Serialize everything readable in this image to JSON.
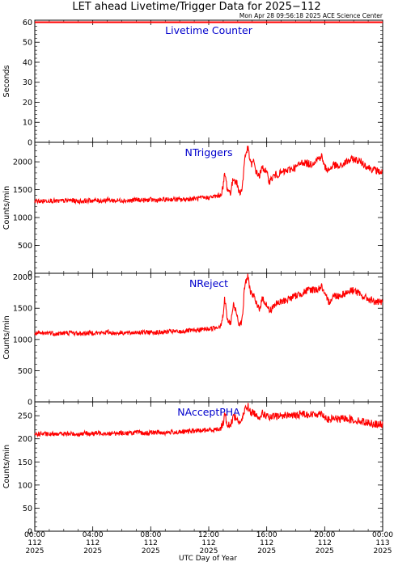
{
  "title": "LET ahead Livetime/Trigger Data for 2025−112",
  "timestamp": "Mon Apr 28 09:56:18 2025 ACE Science Center",
  "xlabel": "UTC Day of Year",
  "colors": {
    "series": "#ff0000",
    "panel_label": "#0000cc",
    "axes": "#000000",
    "background": "#ffffff"
  },
  "chart_data": [
    {
      "type": "line",
      "label": "Livetime Counter",
      "ylabel": "Seconds",
      "ylim": [
        0,
        61
      ],
      "yticks": [
        0,
        10,
        20,
        30,
        40,
        50,
        60
      ],
      "x_range_hours": [
        0,
        24
      ],
      "series": [
        {
          "x": [
            0,
            24
          ],
          "values": [
            60,
            60
          ]
        }
      ]
    },
    {
      "type": "line",
      "label": "NTriggers",
      "ylabel": "Counts/min",
      "ylim": [
        0,
        2350
      ],
      "yticks": [
        0,
        500,
        1000,
        1500,
        2000
      ],
      "x_range_hours": [
        0,
        24
      ],
      "series": [
        {
          "x": [
            0,
            0.5,
            1,
            1.5,
            2,
            2.5,
            3,
            3.5,
            4,
            4.5,
            5,
            5.5,
            6,
            6.5,
            7,
            7.5,
            8,
            8.5,
            9,
            9.5,
            10,
            10.5,
            11,
            11.5,
            12,
            12.5,
            12.8,
            13,
            13.1,
            13.3,
            13.5,
            13.7,
            13.9,
            14.1,
            14.3,
            14.5,
            14.7,
            14.9,
            15.1,
            15.3,
            15.5,
            15.7,
            15.9,
            16.2,
            16.5,
            17,
            17.5,
            18,
            18.5,
            19,
            19.5,
            19.8,
            20,
            20.3,
            20.6,
            21,
            21.5,
            22,
            22.5,
            23,
            23.5,
            24
          ],
          "values": [
            1300,
            1290,
            1310,
            1290,
            1300,
            1310,
            1290,
            1300,
            1310,
            1300,
            1320,
            1300,
            1310,
            1300,
            1320,
            1310,
            1320,
            1310,
            1320,
            1330,
            1320,
            1330,
            1340,
            1350,
            1360,
            1380,
            1400,
            1550,
            1800,
            1500,
            1450,
            1700,
            1650,
            1450,
            1500,
            2100,
            2250,
            1950,
            2000,
            1800,
            1750,
            1900,
            1850,
            1650,
            1750,
            1800,
            1850,
            1900,
            2000,
            1950,
            2050,
            2100,
            1900,
            1850,
            1950,
            1900,
            2000,
            2050,
            2000,
            1900,
            1850,
            1800
          ]
        }
      ]
    },
    {
      "type": "line",
      "label": "NReject",
      "ylabel": "Counts/min",
      "ylim": [
        0,
        2060
      ],
      "yticks": [
        0,
        500,
        1000,
        1500,
        2000
      ],
      "x_range_hours": [
        0,
        24
      ],
      "series": [
        {
          "x": [
            0,
            0.5,
            1,
            1.5,
            2,
            2.5,
            3,
            3.5,
            4,
            4.5,
            5,
            5.5,
            6,
            6.5,
            7,
            7.5,
            8,
            8.5,
            9,
            9.5,
            10,
            10.5,
            11,
            11.5,
            12,
            12.5,
            12.8,
            13,
            13.1,
            13.3,
            13.5,
            13.7,
            13.9,
            14.1,
            14.3,
            14.5,
            14.7,
            14.9,
            15.1,
            15.3,
            15.5,
            15.7,
            15.9,
            16.2,
            16.5,
            17,
            17.5,
            18,
            18.5,
            19,
            19.5,
            19.8,
            20,
            20.3,
            20.6,
            21,
            21.5,
            22,
            22.5,
            23,
            23.5,
            24
          ],
          "values": [
            1100,
            1090,
            1110,
            1090,
            1100,
            1110,
            1090,
            1100,
            1110,
            1100,
            1120,
            1100,
            1110,
            1100,
            1120,
            1110,
            1120,
            1110,
            1120,
            1130,
            1120,
            1140,
            1140,
            1160,
            1170,
            1190,
            1220,
            1400,
            1650,
            1300,
            1250,
            1550,
            1450,
            1250,
            1300,
            1900,
            2000,
            1750,
            1700,
            1550,
            1500,
            1650,
            1600,
            1450,
            1550,
            1600,
            1650,
            1700,
            1750,
            1800,
            1800,
            1850,
            1700,
            1600,
            1700,
            1700,
            1750,
            1800,
            1700,
            1650,
            1600,
            1580
          ]
        }
      ]
    },
    {
      "type": "line",
      "label": "NAcceptPHA",
      "ylabel": "Counts/min",
      "ylim": [
        0,
        280
      ],
      "yticks": [
        0,
        50,
        100,
        150,
        200,
        250
      ],
      "x_range_hours": [
        0,
        24
      ],
      "series": [
        {
          "x": [
            0,
            0.5,
            1,
            1.5,
            2,
            2.5,
            3,
            3.5,
            4,
            4.5,
            5,
            5.5,
            6,
            6.5,
            7,
            7.5,
            8,
            8.5,
            9,
            9.5,
            10,
            10.5,
            11,
            11.5,
            12,
            12.5,
            12.8,
            13,
            13.1,
            13.3,
            13.5,
            13.7,
            13.9,
            14.1,
            14.3,
            14.5,
            14.7,
            14.9,
            15.1,
            15.3,
            15.5,
            15.7,
            15.9,
            16.2,
            16.5,
            17,
            17.5,
            18,
            18.5,
            19,
            19.5,
            19.8,
            20,
            20.3,
            20.6,
            21,
            21.5,
            22,
            22.5,
            23,
            23.5,
            24
          ],
          "values": [
            210,
            211,
            209,
            212,
            210,
            211,
            210,
            212,
            211,
            213,
            212,
            211,
            213,
            212,
            214,
            212,
            213,
            214,
            213,
            215,
            214,
            216,
            217,
            218,
            219,
            220,
            222,
            235,
            255,
            230,
            228,
            250,
            245,
            235,
            240,
            265,
            272,
            255,
            258,
            250,
            248,
            255,
            252,
            245,
            248,
            250,
            252,
            250,
            255,
            252,
            254,
            256,
            248,
            240,
            245,
            242,
            245,
            240,
            238,
            235,
            232,
            230
          ]
        }
      ]
    }
  ],
  "x_ticks": [
    {
      "hours": 0,
      "time": "00:00",
      "doy": "112",
      "year": "2025"
    },
    {
      "hours": 4,
      "time": "04:00",
      "doy": "112",
      "year": "2025"
    },
    {
      "hours": 8,
      "time": "08:00",
      "doy": "112",
      "year": "2025"
    },
    {
      "hours": 12,
      "time": "12:00",
      "doy": "112",
      "year": "2025"
    },
    {
      "hours": 16,
      "time": "16:00",
      "doy": "112",
      "year": "2025"
    },
    {
      "hours": 20,
      "time": "20:00",
      "doy": "112",
      "year": "2025"
    },
    {
      "hours": 24,
      "time": "00:00",
      "doy": "113",
      "year": "2025"
    }
  ]
}
